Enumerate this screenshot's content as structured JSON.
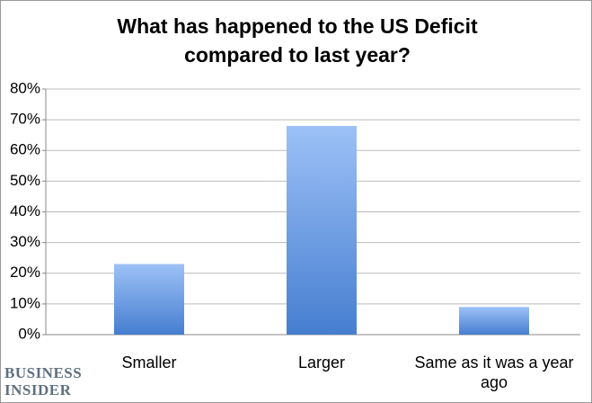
{
  "chart_data": {
    "type": "bar",
    "title": "What has happened to the US Deficit compared to last year?",
    "categories": [
      "Smaller",
      "Larger",
      "Same as it was a year ago"
    ],
    "values": [
      23,
      68,
      9
    ],
    "ylim": [
      0,
      80
    ],
    "yticks": [
      {
        "value": 0,
        "label": "0%"
      },
      {
        "value": 10,
        "label": "10%"
      },
      {
        "value": 20,
        "label": "20%"
      },
      {
        "value": 30,
        "label": "30%"
      },
      {
        "value": 40,
        "label": "40%"
      },
      {
        "value": 50,
        "label": "50%"
      },
      {
        "value": 60,
        "label": "60%"
      },
      {
        "value": 70,
        "label": "70%"
      },
      {
        "value": 80,
        "label": "80%"
      }
    ],
    "grid": true,
    "color": "#5b8fdc"
  },
  "branding": "BUSINESS INSIDER"
}
